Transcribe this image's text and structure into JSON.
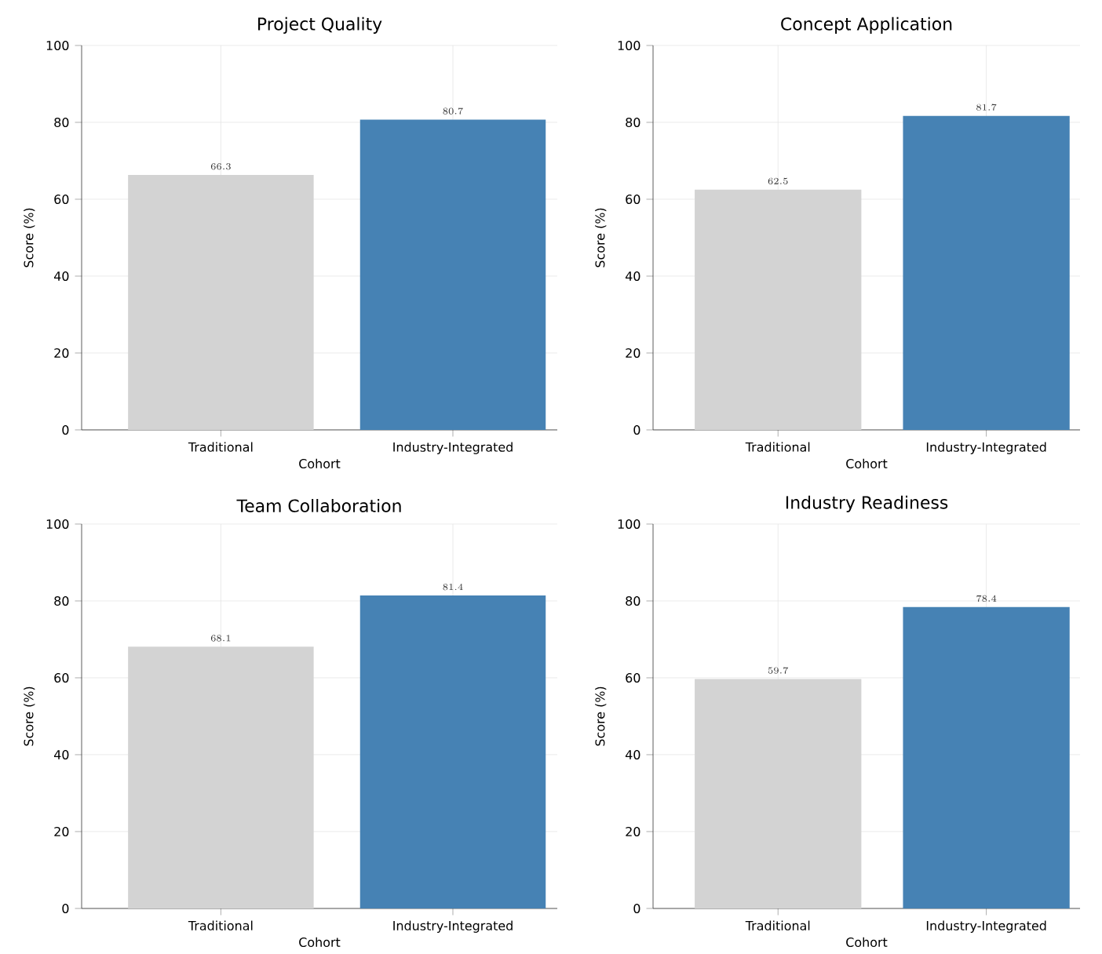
{
  "chart_data": [
    {
      "type": "bar",
      "title": "Project Quality",
      "xlabel": "Cohort",
      "ylabel": "Score (%)",
      "categories": [
        "Traditional",
        "Industry-Integrated"
      ],
      "values": [
        66.3,
        80.7
      ],
      "colors": [
        "#d3d3d3",
        "#4682b4"
      ],
      "ylim": [
        0,
        100
      ],
      "yticks": [
        0,
        20,
        40,
        60,
        80,
        100
      ],
      "grid": true,
      "data_labels": true
    },
    {
      "type": "bar",
      "title": "Concept Application",
      "xlabel": "Cohort",
      "ylabel": "Score (%)",
      "categories": [
        "Traditional",
        "Industry-Integrated"
      ],
      "values": [
        62.5,
        81.7
      ],
      "colors": [
        "#d3d3d3",
        "#4682b4"
      ],
      "ylim": [
        0,
        100
      ],
      "yticks": [
        0,
        20,
        40,
        60,
        80,
        100
      ],
      "grid": true,
      "data_labels": true
    },
    {
      "type": "bar",
      "title": "Team Collaboration",
      "xlabel": "Cohort",
      "ylabel": "Score (%)",
      "categories": [
        "Traditional",
        "Industry-Integrated"
      ],
      "values": [
        68.1,
        81.4
      ],
      "colors": [
        "#d3d3d3",
        "#4682b4"
      ],
      "ylim": [
        0,
        100
      ],
      "yticks": [
        0,
        20,
        40,
        60,
        80,
        100
      ],
      "grid": true,
      "data_labels": true
    },
    {
      "type": "bar",
      "title": "Industry Readiness",
      "xlabel": "Cohort",
      "ylabel": "Score (%)",
      "categories": [
        "Traditional",
        "Industry-Integrated"
      ],
      "values": [
        59.7,
        78.4
      ],
      "colors": [
        "#d3d3d3",
        "#4682b4"
      ],
      "ylim": [
        0,
        100
      ],
      "yticks": [
        0,
        20,
        40,
        60,
        80,
        100
      ],
      "grid": true,
      "data_labels": true
    }
  ]
}
